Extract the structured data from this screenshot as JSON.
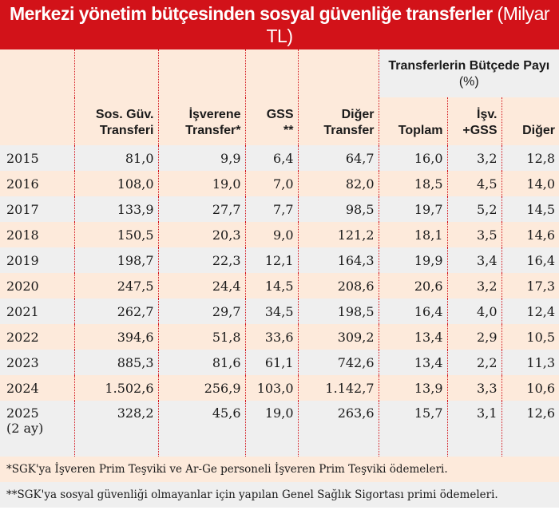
{
  "title": {
    "main": "Merkezi yönetim bütçesinden sosyal güvenliğe transferler",
    "unit": "(Milyar TL)"
  },
  "colors": {
    "brand_red": "#d21219",
    "peach": "#fdeadb",
    "gray": "#efefef"
  },
  "table": {
    "group_header": {
      "label": "Transferlerin Bütçede Payı",
      "unit": "(%)"
    },
    "columns": [
      {
        "line1": "",
        "line2": ""
      },
      {
        "line1": "Sos. Güv.",
        "line2": "Transferi"
      },
      {
        "line1": "İşverene",
        "line2": "Transfer*"
      },
      {
        "line1": "GSS",
        "line2": "**"
      },
      {
        "line1": "Diğer",
        "line2": "Transfer"
      },
      {
        "line1": "",
        "line2": "Toplam"
      },
      {
        "line1": "İşv.",
        "line2": "+GSS"
      },
      {
        "line1": "",
        "line2": "Diğer"
      }
    ],
    "rows": [
      {
        "year": "2015",
        "note": "",
        "values": [
          "81,0",
          "9,9",
          "6,4",
          "64,7",
          "16,0",
          "3,2",
          "12,8"
        ]
      },
      {
        "year": "2016",
        "note": "",
        "values": [
          "108,0",
          "19,0",
          "7,0",
          "82,0",
          "18,5",
          "4,5",
          "14,0"
        ]
      },
      {
        "year": "2017",
        "note": "",
        "values": [
          "133,9",
          "27,7",
          "7,7",
          "98,5",
          "19,7",
          "5,2",
          "14,5"
        ]
      },
      {
        "year": "2018",
        "note": "",
        "values": [
          "150,5",
          "20,3",
          "9,0",
          "121,2",
          "18,1",
          "3,5",
          "14,6"
        ]
      },
      {
        "year": "2019",
        "note": "",
        "values": [
          "198,7",
          "22,3",
          "12,1",
          "164,3",
          "19,9",
          "3,4",
          "16,4"
        ]
      },
      {
        "year": "2020",
        "note": "",
        "values": [
          "247,5",
          "24,4",
          "14,5",
          "208,6",
          "20,6",
          "3,2",
          "17,3"
        ]
      },
      {
        "year": "2021",
        "note": "",
        "values": [
          "262,7",
          "29,7",
          "34,5",
          "198,5",
          "16,4",
          "4,0",
          "12,4"
        ]
      },
      {
        "year": "2022",
        "note": "",
        "values": [
          "394,6",
          "51,8",
          "33,6",
          "309,2",
          "13,4",
          "2,9",
          "10,5"
        ]
      },
      {
        "year": "2023",
        "note": "",
        "values": [
          "885,3",
          "81,6",
          "61,1",
          "742,6",
          "13,4",
          "2,2",
          "11,3"
        ]
      },
      {
        "year": "2024",
        "note": "",
        "values": [
          "1.502,6",
          "256,9",
          "103,0",
          "1.142,7",
          "13,9",
          "3,3",
          "10,6"
        ]
      },
      {
        "year": "2025",
        "note": "(2 ay)",
        "values": [
          "328,2",
          "45,6",
          "19,0",
          "263,6",
          "15,7",
          "3,1",
          "12,6"
        ]
      }
    ]
  },
  "footnotes": [
    "*SGK'ya İşveren Prim Teşviki ve Ar-Ge personeli İşveren Prim Teşviki ödemeleri.",
    "**SGK'ya sosyal güvenliği olmayanlar için yapılan Genel Sağlık Sigortası primi ödemeleri."
  ]
}
